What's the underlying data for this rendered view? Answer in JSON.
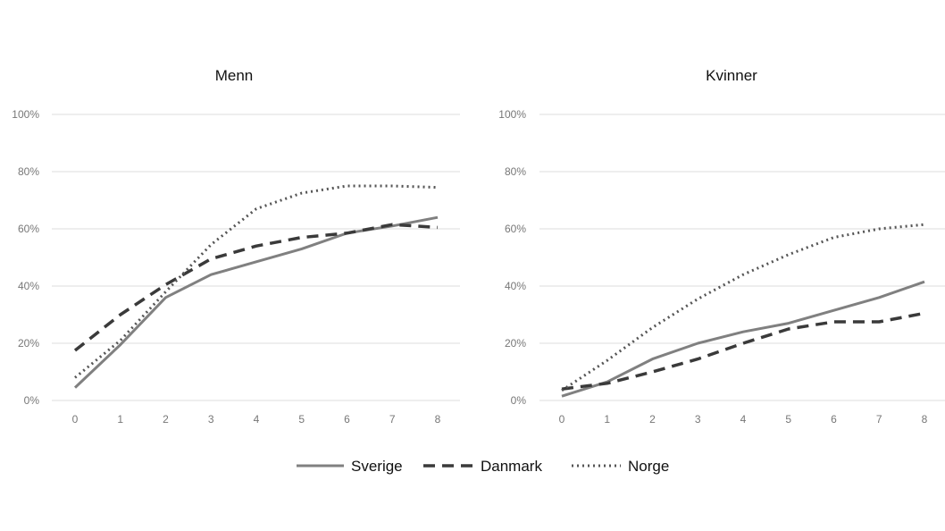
{
  "chart_data": [
    {
      "type": "line",
      "title": "Menn",
      "xlabel": "",
      "ylabel": "",
      "x": [
        0,
        1,
        2,
        3,
        4,
        5,
        6,
        7,
        8
      ],
      "x_tick_labels": [
        "0",
        "1",
        "2",
        "3",
        "4",
        "5",
        "6",
        "7",
        "8"
      ],
      "y_tick_labels": [
        "0%",
        "20%",
        "40%",
        "60%",
        "80%",
        "100%"
      ],
      "y_ticks": [
        0,
        20,
        40,
        60,
        80,
        100
      ],
      "ylim": [
        0,
        100
      ],
      "grid": true,
      "series": [
        {
          "name": "Sverige",
          "values": [
            4.5,
            19.5,
            36,
            44,
            48.5,
            53,
            58.5,
            61,
            64
          ]
        },
        {
          "name": "Danmark",
          "values": [
            17.5,
            30,
            40.5,
            49.5,
            54,
            57,
            58.5,
            61.5,
            60.5
          ]
        },
        {
          "name": "Norge",
          "values": [
            8,
            21,
            38,
            54.5,
            67,
            72.5,
            75,
            75,
            74.5
          ]
        }
      ]
    },
    {
      "type": "line",
      "title": "Kvinner",
      "xlabel": "",
      "ylabel": "",
      "x": [
        0,
        1,
        2,
        3,
        4,
        5,
        6,
        7,
        8
      ],
      "x_tick_labels": [
        "0",
        "1",
        "2",
        "3",
        "4",
        "5",
        "6",
        "7",
        "8"
      ],
      "y_tick_labels": [
        "0%",
        "20%",
        "40%",
        "60%",
        "80%",
        "100%"
      ],
      "y_ticks": [
        0,
        20,
        40,
        60,
        80,
        100
      ],
      "ylim": [
        0,
        100
      ],
      "grid": true,
      "series": [
        {
          "name": "Sverige",
          "values": [
            1.5,
            6.5,
            14.5,
            20,
            24,
            27,
            31.5,
            36,
            41.5
          ]
        },
        {
          "name": "Danmark",
          "values": [
            4,
            6,
            10,
            14.5,
            20,
            25,
            27.5,
            27.5,
            30.5
          ]
        },
        {
          "name": "Norge",
          "values": [
            3.5,
            14,
            25.5,
            35.5,
            44,
            51,
            57,
            60,
            61.5
          ]
        }
      ]
    }
  ],
  "legend": {
    "placement": "bottom-center",
    "items": [
      {
        "label": "Sverige",
        "style": "solid"
      },
      {
        "label": "Danmark",
        "style": "dashed"
      },
      {
        "label": "Norge",
        "style": "dotted"
      }
    ]
  },
  "colors": {
    "Sverige": "#808080",
    "Danmark": "#3a3a3a",
    "Norge": "#555555",
    "grid": "#e3e3e3",
    "tick_text": "#777777"
  }
}
